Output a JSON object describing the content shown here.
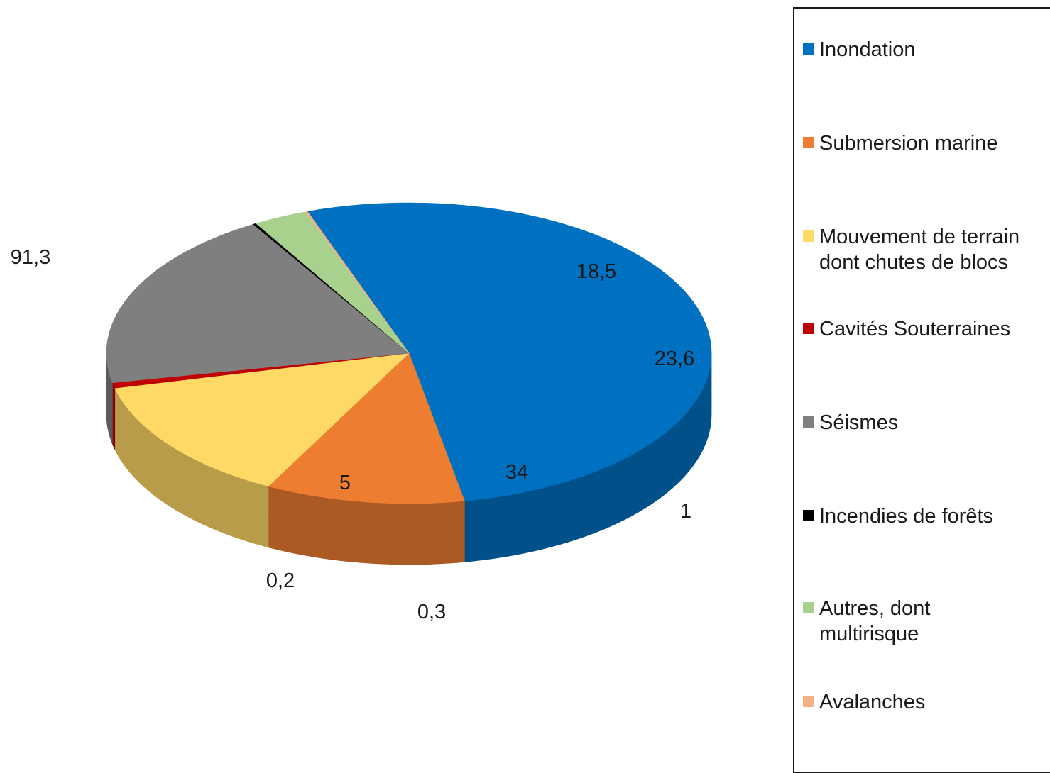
{
  "chart_data": {
    "type": "pie",
    "style": "3d",
    "legend_position": "right",
    "slices": [
      {
        "label": "Inondation",
        "value": 91.3,
        "display": "91,3",
        "color": "#0070C0"
      },
      {
        "label": "Submersion marine",
        "value": 18.5,
        "display": "18,5",
        "color": "#ED7D31"
      },
      {
        "label": "Mouvement de terrain dont chutes de blocs",
        "value": 23.6,
        "display": "23,6",
        "color": "#FFD966"
      },
      {
        "label": "Cavités Souterraines",
        "value": 1,
        "display": "1",
        "color": "#C00000"
      },
      {
        "label": "Séismes",
        "value": 34,
        "display": "34",
        "color": "#7F7F7F"
      },
      {
        "label": "Incendies de forêts",
        "value": 0.3,
        "display": "0,3",
        "color": "#000000"
      },
      {
        "label": "Autres, dont multirisque",
        "value": 5,
        "display": "5",
        "color": "#A9D18E"
      },
      {
        "label": "Avalanches",
        "value": 0.2,
        "display": "0,2",
        "color": "#F4B183"
      }
    ]
  },
  "legend": {
    "items": [
      {
        "text": "Inondation"
      },
      {
        "text": "Submersion marine"
      },
      {
        "text": "Mouvement de terrain\ndont chutes de blocs"
      },
      {
        "text": "Cavités Souterraines"
      },
      {
        "text": "Séismes"
      },
      {
        "text": "Incendies de forêts"
      },
      {
        "text": "Autres, dont\nmultirisque"
      },
      {
        "text": "Avalanches"
      }
    ]
  }
}
